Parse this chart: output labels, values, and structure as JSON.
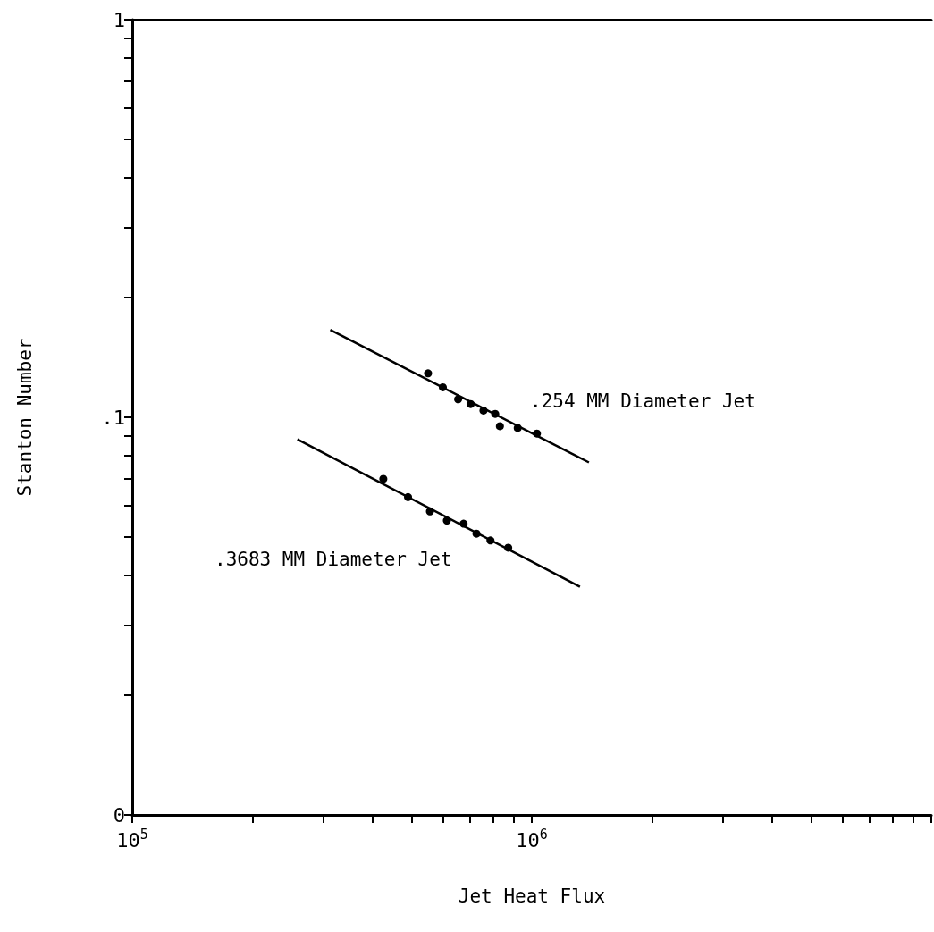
{
  "chart_data": {
    "type": "scatter",
    "xlabel": "Jet Heat Flux",
    "ylabel": "Stanton Number",
    "log": "xy",
    "grid": false,
    "marker": "circle",
    "xlim": [
      100000,
      10000000
    ],
    "ylim": [
      0.01,
      1
    ],
    "xticks": [
      {
        "value": 100000,
        "label": "10$^{5}$"
      },
      {
        "value": 200000,
        "label": null
      },
      {
        "value": 300000,
        "label": null
      },
      {
        "value": 400000,
        "label": null
      },
      {
        "value": 500000,
        "label": null
      },
      {
        "value": 600000,
        "label": null
      },
      {
        "value": 700000,
        "label": null
      },
      {
        "value": 800000,
        "label": null
      },
      {
        "value": 900000,
        "label": null
      },
      {
        "value": 1000000,
        "label": "10$^{6}$"
      },
      {
        "value": 2000000,
        "label": null
      },
      {
        "value": 3000000,
        "label": null
      },
      {
        "value": 4000000,
        "label": null
      },
      {
        "value": 5000000,
        "label": null
      },
      {
        "value": 6000000,
        "label": null
      },
      {
        "value": 7000000,
        "label": null
      },
      {
        "value": 8000000,
        "label": null
      },
      {
        "value": 9000000,
        "label": null
      },
      {
        "value": 10000000,
        "label": null
      }
    ],
    "yticks": [
      {
        "value": 0.01,
        "label": "0"
      },
      {
        "value": 0.02,
        "label": null
      },
      {
        "value": 0.03,
        "label": null
      },
      {
        "value": 0.04,
        "label": null
      },
      {
        "value": 0.05,
        "label": null
      },
      {
        "value": 0.06,
        "label": null
      },
      {
        "value": 0.07,
        "label": null
      },
      {
        "value": 0.08,
        "label": null
      },
      {
        "value": 0.09,
        "label": null
      },
      {
        "value": 0.1,
        "label": ".1"
      },
      {
        "value": 0.2,
        "label": null
      },
      {
        "value": 0.3,
        "label": null
      },
      {
        "value": 0.4,
        "label": null
      },
      {
        "value": 0.5,
        "label": null
      },
      {
        "value": 0.6,
        "label": null
      },
      {
        "value": 0.7,
        "label": null
      },
      {
        "value": 0.8,
        "label": null
      },
      {
        "value": 0.9,
        "label": null
      },
      {
        "value": 1,
        "label": "1"
      }
    ],
    "series": [
      {
        "color": "#000000",
        "x": [
          550000,
          599000,
          654000,
          703000,
          757000,
          810000,
          832000,
          922000,
          1030000
        ],
        "values": [
          0.129,
          0.119,
          0.111,
          0.108,
          0.104,
          0.102,
          0.095,
          0.094,
          0.091
        ]
      },
      {
        "type": "line",
        "marker": "none",
        "color": "#000000",
        "x": [
          313000,
          1390000
        ],
        "values": [
          0.166,
          0.077
        ]
      },
      {
        "color": "#000000",
        "x": [
          425000,
          490000,
          556000,
          613000,
          675000,
          727000,
          788000,
          873000
        ],
        "values": [
          0.07,
          0.063,
          0.058,
          0.055,
          0.054,
          0.051,
          0.049,
          0.047
        ]
      },
      {
        "type": "line",
        "marker": "none",
        "color": "#000000",
        "x": [
          259000,
          1320000
        ],
        "values": [
          0.088,
          0.0375
        ]
      }
    ],
    "annotations": [
      ".254 MM Diameter Jet",
      ".3683 MM Diameter Jet"
    ]
  }
}
